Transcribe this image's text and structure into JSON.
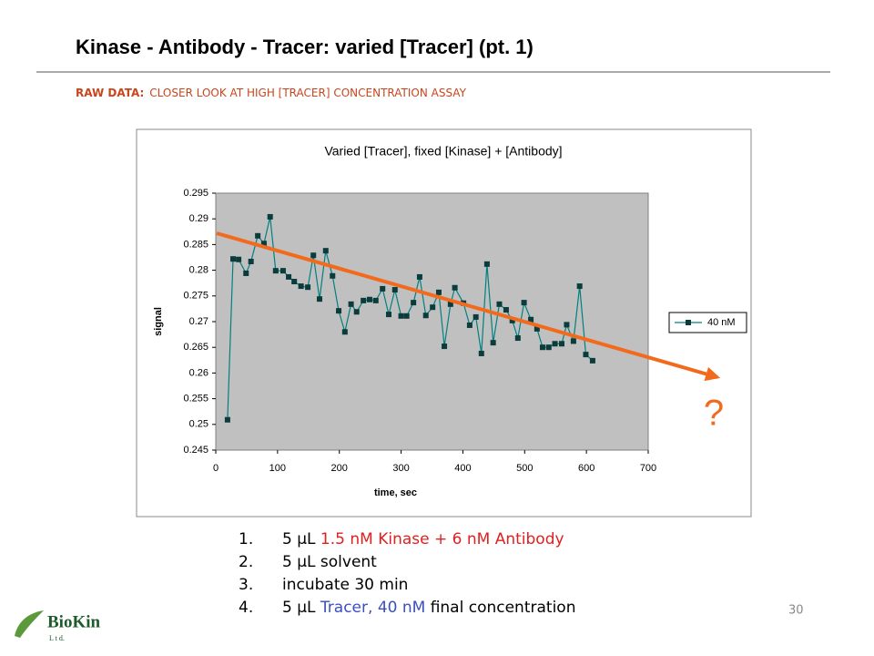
{
  "slide": {
    "title": "Kinase - Antibody - Tracer: varied [Tracer] (pt. 1)",
    "subtitle_lead": "RAW DATA:",
    "subtitle": "CLOSER LOOK AT HIGH [TRACER] CONCENTRATION ASSAY",
    "steps": [
      {
        "number": "1.",
        "parts": [
          "5 μL",
          "1.5 nM Kinase + 6 nM Antibody"
        ]
      },
      {
        "number": "2.",
        "parts": [
          "5 μL solvent"
        ]
      },
      {
        "number": "3.",
        "parts": [
          "incubate 30 min"
        ]
      },
      {
        "number": "4.",
        "parts": [
          "5 μL",
          "Tracer, 40 nM",
          "final concentration"
        ]
      }
    ],
    "annotation": "?",
    "page_number": "30",
    "logo_name": "BioKin",
    "logo_suffix": "L t d."
  },
  "chart_data": {
    "type": "line",
    "title": "Varied [Tracer], fixed [Kinase] + [Antibody]",
    "x_label": "time, sec",
    "y_label": "signal",
    "x": [
      19,
      28,
      37,
      49,
      57,
      68,
      78,
      88,
      97,
      109,
      118,
      127,
      138,
      149,
      158,
      168,
      178,
      189,
      199,
      209,
      219,
      228,
      239,
      249,
      259,
      270,
      280,
      290,
      300,
      309,
      320,
      330,
      340,
      351,
      361,
      370,
      380,
      387,
      401,
      411,
      421,
      430,
      439,
      449,
      459,
      470,
      480,
      489,
      499,
      510,
      520,
      529,
      539,
      549,
      560,
      568,
      579,
      589,
      599,
      610
    ],
    "series": [
      {
        "name": "40 nM",
        "color": "#008080",
        "marker_color": "#0b3b3b",
        "values": [
          0.2509,
          0.2822,
          0.2821,
          0.2794,
          0.2817,
          0.2867,
          0.2852,
          0.2904,
          0.2799,
          0.2799,
          0.2787,
          0.2778,
          0.2769,
          0.2767,
          0.2829,
          0.2744,
          0.2838,
          0.2789,
          0.2721,
          0.268,
          0.2734,
          0.2719,
          0.2741,
          0.2743,
          0.2741,
          0.2764,
          0.2714,
          0.2762,
          0.2711,
          0.2711,
          0.2737,
          0.2787,
          0.2712,
          0.2728,
          0.2757,
          0.2652,
          0.2734,
          0.2766,
          0.2736,
          0.2693,
          0.2709,
          0.2638,
          0.2812,
          0.2659,
          0.2734,
          0.2723,
          0.2702,
          0.2668,
          0.2737,
          0.2704,
          0.2686,
          0.265,
          0.265,
          0.2657,
          0.2657,
          0.2694,
          0.2662,
          0.2769,
          0.2636,
          0.2624
        ]
      }
    ],
    "xlim": [
      0,
      700
    ],
    "xticks": [
      0,
      100,
      200,
      300,
      400,
      500,
      600,
      700
    ],
    "ylim": [
      0.245,
      0.295
    ],
    "yticks": [
      0.245,
      0.25,
      0.255,
      0.26,
      0.265,
      0.27,
      0.275,
      0.28,
      0.285,
      0.29,
      0.295
    ],
    "grid": false,
    "legend": "right",
    "plot_background": "#c0c0c0"
  }
}
